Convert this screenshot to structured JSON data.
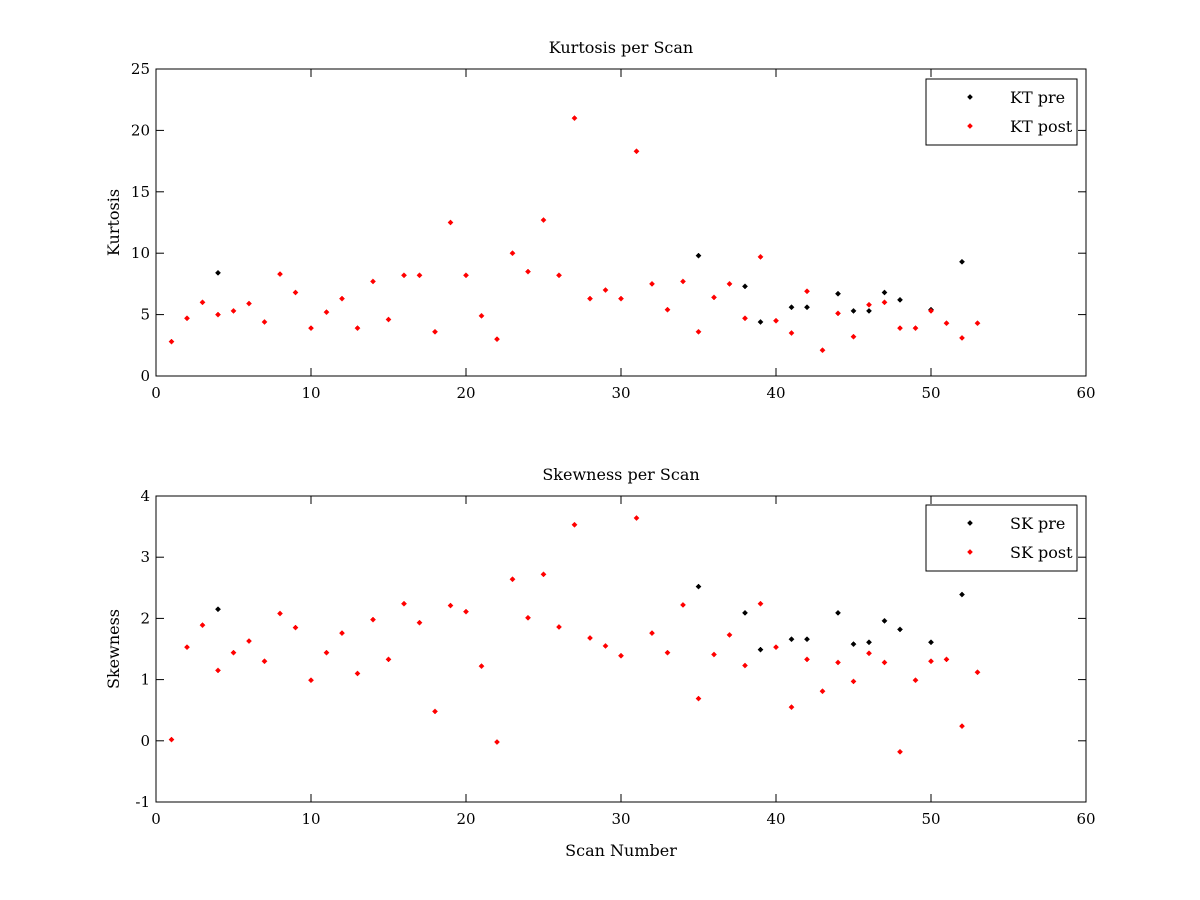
{
  "chart_data": [
    {
      "type": "scatter",
      "title": "Kurtosis per Scan",
      "xlabel": "",
      "ylabel": "Kurtosis",
      "xlim": [
        0,
        60
      ],
      "ylim": [
        0,
        25
      ],
      "xticks": [
        0,
        10,
        20,
        30,
        40,
        50,
        60
      ],
      "yticks": [
        0,
        5,
        10,
        15,
        20,
        25
      ],
      "grid": false,
      "legend_position": "top-right",
      "series": [
        {
          "name": "KT pre",
          "color": "#000000",
          "x": [
            4,
            35,
            38,
            39,
            41,
            42,
            44,
            45,
            46,
            47,
            48,
            50,
            52
          ],
          "y": [
            8.4,
            9.8,
            7.3,
            4.4,
            5.6,
            5.6,
            6.7,
            5.3,
            5.3,
            6.8,
            6.2,
            5.4,
            9.3
          ]
        },
        {
          "name": "KT post",
          "color": "#ff0000",
          "x": [
            1,
            2,
            3,
            4,
            5,
            6,
            7,
            8,
            9,
            10,
            11,
            12,
            13,
            14,
            15,
            16,
            17,
            18,
            19,
            20,
            21,
            22,
            23,
            24,
            25,
            26,
            27,
            28,
            29,
            30,
            31,
            32,
            33,
            34,
            35,
            36,
            37,
            38,
            39,
            40,
            41,
            42,
            43,
            44,
            45,
            46,
            47,
            48,
            49,
            50,
            51,
            52,
            53
          ],
          "y": [
            2.8,
            4.7,
            6.0,
            5.0,
            5.3,
            5.9,
            4.4,
            8.3,
            6.8,
            3.9,
            5.2,
            6.3,
            3.9,
            7.7,
            4.6,
            8.2,
            8.2,
            3.6,
            12.5,
            8.2,
            4.9,
            3.0,
            10.0,
            8.5,
            12.7,
            8.2,
            21.0,
            6.3,
            7.0,
            6.3,
            18.3,
            7.5,
            5.4,
            7.7,
            3.6,
            6.4,
            7.5,
            4.7,
            9.7,
            4.5,
            3.5,
            6.9,
            2.1,
            5.1,
            3.2,
            5.8,
            6.0,
            3.9,
            3.9,
            5.3,
            4.3,
            3.1,
            4.3
          ]
        }
      ]
    },
    {
      "type": "scatter",
      "title": "Skewness per Scan",
      "xlabel": "Scan Number",
      "ylabel": "Skewness",
      "xlim": [
        0,
        60
      ],
      "ylim": [
        -1,
        4
      ],
      "xticks": [
        0,
        10,
        20,
        30,
        40,
        50,
        60
      ],
      "yticks": [
        -1,
        0,
        1,
        2,
        3,
        4
      ],
      "grid": false,
      "legend_position": "top-right",
      "series": [
        {
          "name": "SK pre",
          "color": "#000000",
          "x": [
            4,
            35,
            38,
            39,
            41,
            42,
            44,
            45,
            46,
            47,
            48,
            50,
            52
          ],
          "y": [
            2.15,
            2.52,
            2.09,
            1.49,
            1.66,
            1.66,
            2.09,
            1.58,
            1.61,
            1.96,
            1.82,
            1.61,
            2.39
          ]
        },
        {
          "name": "SK post",
          "color": "#ff0000",
          "x": [
            1,
            2,
            3,
            4,
            5,
            6,
            7,
            8,
            9,
            10,
            11,
            12,
            13,
            14,
            15,
            16,
            17,
            18,
            19,
            20,
            21,
            22,
            23,
            24,
            25,
            26,
            27,
            28,
            29,
            30,
            31,
            32,
            33,
            34,
            35,
            36,
            37,
            38,
            39,
            40,
            41,
            42,
            43,
            44,
            45,
            46,
            47,
            48,
            49,
            50,
            51,
            52,
            53
          ],
          "y": [
            0.02,
            1.53,
            1.89,
            1.15,
            1.44,
            1.63,
            1.3,
            2.08,
            1.85,
            0.99,
            1.44,
            1.76,
            1.1,
            1.98,
            1.33,
            2.24,
            1.93,
            0.48,
            2.21,
            2.11,
            1.22,
            -0.02,
            2.64,
            2.01,
            2.72,
            1.86,
            3.53,
            1.68,
            1.55,
            1.39,
            3.64,
            1.76,
            1.44,
            2.22,
            0.69,
            1.41,
            1.73,
            1.23,
            2.24,
            1.53,
            0.55,
            1.33,
            0.81,
            1.28,
            0.97,
            1.43,
            1.28,
            -0.18,
            0.99,
            1.3,
            1.33,
            0.24,
            1.12
          ]
        }
      ]
    }
  ]
}
